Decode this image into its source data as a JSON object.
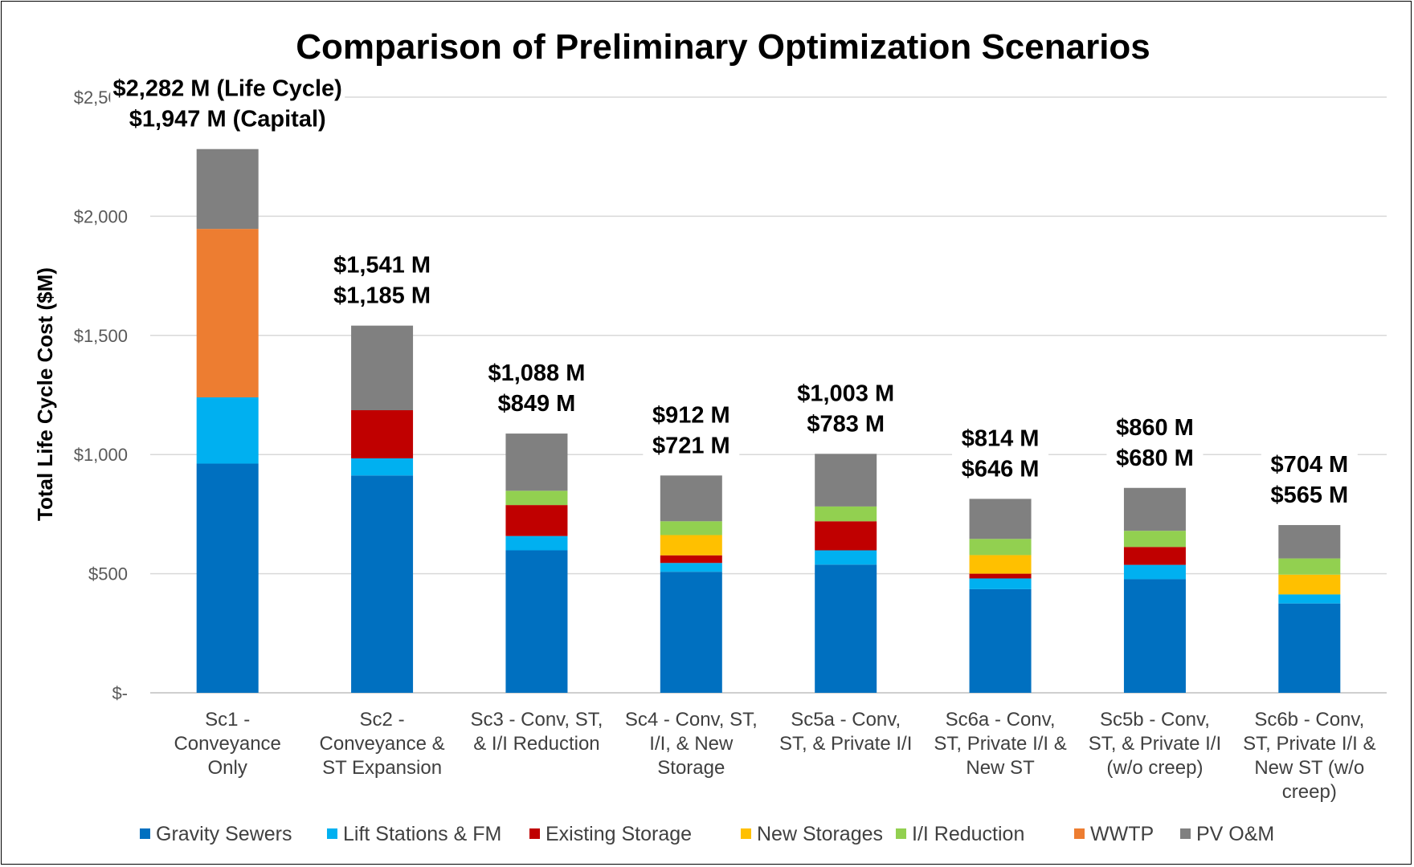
{
  "chart_data": {
    "type": "bar",
    "stacked": true,
    "title": "Comparison of Preliminary Optimization Scenarios",
    "xlabel": "",
    "ylabel": "Total Life Cycle Cost ($M)",
    "ylim": [
      0,
      2500
    ],
    "y_ticks": [
      0,
      500,
      1000,
      1500,
      2000,
      2500
    ],
    "y_tick_labels": [
      "$-",
      "$500",
      "$1,000",
      "$1,500",
      "$2,000",
      "$2,500"
    ],
    "grid": true,
    "legend_position": "bottom",
    "categories": [
      [
        "Sc1 -",
        "Conveyance",
        "Only"
      ],
      [
        "Sc2 -",
        "Conveyance &",
        "ST Expansion"
      ],
      [
        "Sc3 - Conv, ST,",
        "& I/I Reduction"
      ],
      [
        "Sc4 - Conv, ST,",
        "I/I, & New",
        "Storage"
      ],
      [
        "Sc5a - Conv,",
        "ST, & Private I/I"
      ],
      [
        "Sc6a - Conv,",
        "ST, Private I/I &",
        "New ST"
      ],
      [
        "Sc5b - Conv,",
        "ST, & Private I/I",
        "(w/o creep)"
      ],
      [
        "Sc6b - Conv,",
        "ST, Private I/I &",
        "New ST (w/o",
        "creep)"
      ]
    ],
    "series": [
      {
        "name": "Gravity Sewers",
        "color": "#0070C0",
        "values": [
          962,
          912,
          598,
          508,
          538,
          435,
          477,
          375
        ]
      },
      {
        "name": "Lift Stations & FM",
        "color": "#00B0F0",
        "values": [
          278,
          72,
          60,
          37,
          60,
          45,
          60,
          38
        ]
      },
      {
        "name": "Existing Storage",
        "color": "#C00000",
        "values": [
          0,
          202,
          130,
          32,
          122,
          20,
          75,
          0
        ]
      },
      {
        "name": "New Storages",
        "color": "#FFC000",
        "values": [
          0,
          0,
          0,
          85,
          0,
          78,
          0,
          83
        ]
      },
      {
        "name": "I/I Reduction",
        "color": "#92D050",
        "values": [
          0,
          0,
          60,
          58,
          62,
          68,
          68,
          68
        ]
      },
      {
        "name": "WWTP",
        "color": "#ED7D31",
        "values": [
          707,
          0,
          0,
          0,
          0,
          0,
          0,
          0
        ]
      },
      {
        "name": "PV O&M",
        "color": "#808080",
        "values": [
          335,
          355,
          240,
          192,
          221,
          168,
          180,
          140
        ]
      }
    ],
    "annotations": [
      {
        "line1": "$2,282 M (Life Cycle)",
        "line2": "$1,947 M (Capital)"
      },
      {
        "line1": "$1,541 M",
        "line2": "$1,185 M"
      },
      {
        "line1": "$1,088 M",
        "line2": "$849 M"
      },
      {
        "line1": "$912 M",
        "line2": "$721 M"
      },
      {
        "line1": "$1,003 M",
        "line2": "$783 M"
      },
      {
        "line1": "$814 M",
        "line2": "$646 M"
      },
      {
        "line1": "$860 M",
        "line2": "$680 M"
      },
      {
        "line1": "$704 M",
        "line2": "$565 M"
      }
    ]
  }
}
